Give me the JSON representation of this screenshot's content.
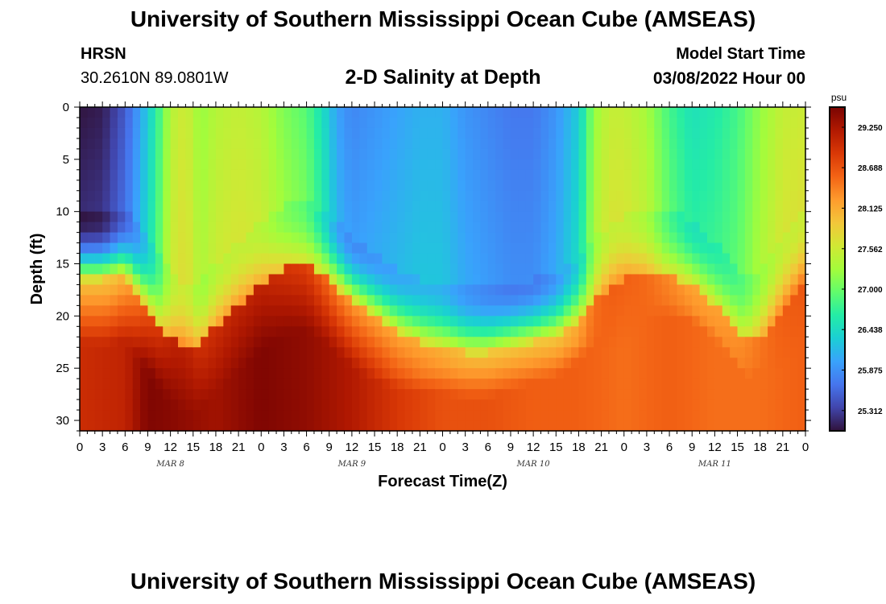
{
  "header": {
    "title": "University of Southern Mississippi Ocean Cube (AMSEAS)",
    "station": "HRSN",
    "coordinates": "30.2610N  89.0801W",
    "plot_title": "2-D Salinity at Depth",
    "model_start_label": "Model Start Time",
    "model_start_value": "03/08/2022 Hour 00"
  },
  "footer": {
    "title": "University of Southern Mississippi Ocean Cube (AMSEAS)"
  },
  "colors": {
    "colormap": [
      "#30123b",
      "#4145ab",
      "#4675ed",
      "#39a2fc",
      "#1bcfd4",
      "#24eca6",
      "#61fc6c",
      "#a4fc3b",
      "#d1e834",
      "#f3c63a",
      "#fe9b2d",
      "#f36315",
      "#d93806",
      "#b11901",
      "#7a0402"
    ]
  },
  "chart_data": {
    "type": "heatmap",
    "title": "2-D Salinity at Depth",
    "xlabel": "Forecast Time(Z)",
    "ylabel": "Depth (ft)",
    "x_range_hours": [
      0,
      96
    ],
    "ylim": [
      0,
      31
    ],
    "y_direction": "inverted (0 at top)",
    "x_tick_labels": [
      "0",
      "3",
      "6",
      "9",
      "12",
      "15",
      "18",
      "21",
      "0",
      "3",
      "6",
      "9",
      "12",
      "15",
      "18",
      "21",
      "0",
      "3",
      "6",
      "9",
      "12",
      "15",
      "18",
      "21",
      "0",
      "3",
      "6",
      "9",
      "12",
      "15",
      "18",
      "21",
      "0"
    ],
    "x_tick_hours": [
      0,
      3,
      6,
      9,
      12,
      15,
      18,
      21,
      24,
      27,
      30,
      33,
      36,
      39,
      42,
      45,
      48,
      51,
      54,
      57,
      60,
      63,
      66,
      69,
      72,
      75,
      78,
      81,
      84,
      87,
      90,
      93,
      96
    ],
    "date_labels": [
      {
        "label": "MAR 8",
        "hour": 12
      },
      {
        "label": "MAR 9",
        "hour": 36
      },
      {
        "label": "MAR 10",
        "hour": 60
      },
      {
        "label": "MAR 11",
        "hour": 84
      }
    ],
    "y_ticks": [
      0,
      5,
      10,
      15,
      20,
      25,
      30
    ],
    "y_tick_labels": [
      "0",
      "5",
      "10",
      "15",
      "20",
      "25",
      "30"
    ],
    "colorbar": {
      "unit": "psu",
      "min": 25.03,
      "max": 29.53,
      "tick_values": [
        29.25,
        28.688,
        28.125,
        27.562,
        27.0,
        26.438,
        25.875,
        25.312
      ],
      "tick_labels": [
        "29.250",
        "28.688",
        "28.125",
        "27.562",
        "27.000",
        "26.438",
        "25.875",
        "25.312"
      ]
    },
    "model": {
      "description": "Approximate reconstruction of salinity field: low-salinity upper layer over a saline bottom layer; halocline depth (ft) varies with time",
      "halocline_depth_ft": [
        [
          0,
          16.5
        ],
        [
          3,
          16.5
        ],
        [
          6,
          16
        ],
        [
          8,
          18
        ],
        [
          10,
          20
        ],
        [
          12,
          22
        ],
        [
          14,
          23
        ],
        [
          15,
          23
        ],
        [
          16,
          22.5
        ],
        [
          18,
          21
        ],
        [
          21,
          19
        ],
        [
          24,
          17
        ],
        [
          27,
          15.5
        ],
        [
          30,
          15
        ],
        [
          33,
          16.5
        ],
        [
          36,
          18.5
        ],
        [
          39,
          20
        ],
        [
          42,
          21.5
        ],
        [
          45,
          22.5
        ],
        [
          48,
          23
        ],
        [
          51,
          23.5
        ],
        [
          54,
          23.5
        ],
        [
          57,
          23
        ],
        [
          60,
          22.5
        ],
        [
          63,
          22
        ],
        [
          66,
          20.5
        ],
        [
          69,
          18
        ],
        [
          72,
          16.5
        ],
        [
          75,
          16
        ],
        [
          78,
          16
        ],
        [
          81,
          17
        ],
        [
          84,
          19
        ],
        [
          87,
          21.5
        ],
        [
          88,
          22.5
        ],
        [
          90,
          22
        ],
        [
          93,
          19
        ],
        [
          96,
          16
        ]
      ],
      "surface_salinity_psu": [
        [
          0,
          25.05
        ],
        [
          3,
          25.1
        ],
        [
          6,
          25.5
        ],
        [
          8,
          26.0
        ],
        [
          10,
          26.6
        ],
        [
          12,
          27.4
        ],
        [
          14,
          27.6
        ],
        [
          16,
          27.2
        ],
        [
          18,
          27.4
        ],
        [
          21,
          27.5
        ],
        [
          24,
          27.4
        ],
        [
          27,
          27.1
        ],
        [
          30,
          26.9
        ],
        [
          32,
          26.5
        ],
        [
          34,
          26.0
        ],
        [
          36,
          25.8
        ],
        [
          39,
          25.9
        ],
        [
          42,
          26.0
        ],
        [
          45,
          26.1
        ],
        [
          48,
          26.1
        ],
        [
          51,
          25.9
        ],
        [
          54,
          25.8
        ],
        [
          57,
          25.7
        ],
        [
          60,
          25.7
        ],
        [
          63,
          25.9
        ],
        [
          66,
          26.3
        ],
        [
          68,
          27.2
        ],
        [
          70,
          27.5
        ],
        [
          72,
          27.5
        ],
        [
          75,
          27.3
        ],
        [
          78,
          26.8
        ],
        [
          81,
          26.5
        ],
        [
          84,
          26.6
        ],
        [
          87,
          26.8
        ],
        [
          90,
          27.2
        ],
        [
          93,
          27.5
        ],
        [
          96,
          27.55
        ]
      ],
      "bottom_salinity_psu": [
        [
          0,
          29.0
        ],
        [
          6,
          29.1
        ],
        [
          9,
          29.5
        ],
        [
          12,
          29.45
        ],
        [
          18,
          29.3
        ],
        [
          24,
          29.5
        ],
        [
          30,
          29.4
        ],
        [
          36,
          29.2
        ],
        [
          42,
          28.9
        ],
        [
          48,
          28.7
        ],
        [
          54,
          28.7
        ],
        [
          60,
          28.6
        ],
        [
          66,
          28.6
        ],
        [
          72,
          28.5
        ],
        [
          78,
          28.6
        ],
        [
          84,
          28.5
        ],
        [
          90,
          28.5
        ],
        [
          96,
          28.6
        ]
      ]
    }
  }
}
